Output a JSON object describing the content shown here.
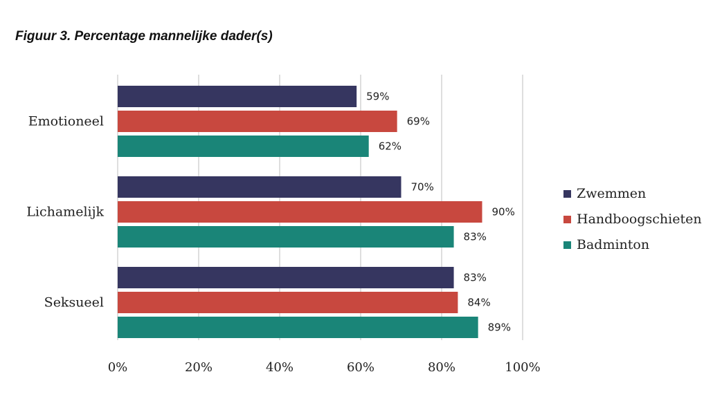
{
  "title": "Figuur 3. Percentage mannelijke dader(s)",
  "chart_data": {
    "type": "bar",
    "orientation": "horizontal",
    "categories": [
      "Emotioneel",
      "Lichamelijk",
      "Seksueel"
    ],
    "series": [
      {
        "name": "Zwemmen",
        "color": "#363660",
        "values": [
          59,
          70,
          83
        ],
        "labels": [
          "59%",
          "70%",
          "83%"
        ]
      },
      {
        "name": "Handboogschieten",
        "color": "#c8483f",
        "values": [
          69,
          90,
          84
        ],
        "labels": [
          "69%",
          "90%",
          "84%"
        ]
      },
      {
        "name": "Badminton",
        "color": "#1a8578",
        "values": [
          62,
          83,
          89
        ],
        "labels": [
          "62%",
          "83%",
          "89%"
        ]
      }
    ],
    "xlim": [
      0,
      100
    ],
    "xticks": [
      0,
      20,
      40,
      60,
      80,
      100
    ],
    "xtick_labels": [
      "0%",
      "20%",
      "40%",
      "60%",
      "80%",
      "100%"
    ],
    "grid": "vertical",
    "legend": "right"
  }
}
